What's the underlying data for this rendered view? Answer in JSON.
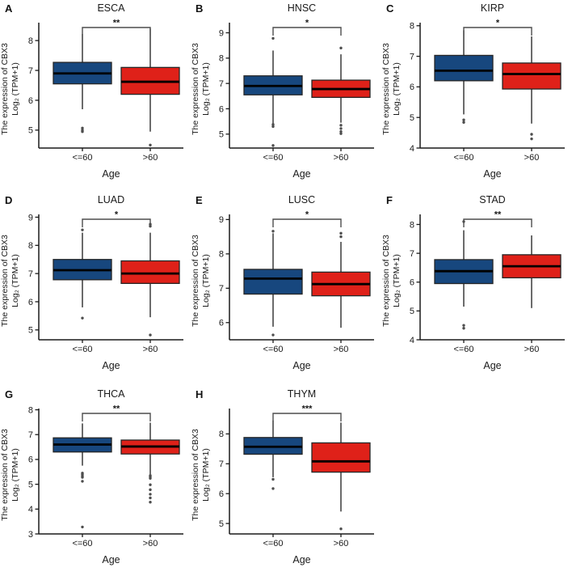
{
  "figure": {
    "background": "#ffffff",
    "ylabel_line1": "The expression of CBX3",
    "ylabel_line2": "Log₂ (TPM+1)",
    "xlabel": "Age",
    "categories": [
      "<=60",
      ">60"
    ],
    "legend": [
      {
        "label": "<=60",
        "color": "#17477E"
      },
      {
        "label": ">60",
        "color": "#DF2119"
      }
    ],
    "colors": {
      "blue_box": "#17477E",
      "red_box": "#DF2119",
      "box_border": "#262626",
      "median": "#000000",
      "whisker": "#2B2B2B",
      "bracket": "#4D4D4D",
      "outlier": "#4D4D4D",
      "axis": "#1A1A1A",
      "text": "#1A1A1A"
    }
  },
  "chart_data": [
    {
      "type": "boxplot",
      "panel": "A",
      "title": "ESCA",
      "significance": "**",
      "xlabel": "Age",
      "ylabel": "The expression of CBX3 Log₂ (TPM+1)",
      "categories": [
        "<=60",
        ">60"
      ],
      "yticks": [
        5,
        6,
        7,
        8
      ],
      "ylim": [
        4.4,
        8.6
      ],
      "series": [
        {
          "name": "<=60",
          "color": "#17477E",
          "whisker_low": 5.7,
          "q1": 6.55,
          "median": 6.9,
          "q3": 7.27,
          "whisker_high": 8.22,
          "outliers": [
            5.07,
            5.0,
            4.95
          ]
        },
        {
          "name": ">60",
          "color": "#DF2119",
          "whisker_low": 4.95,
          "q1": 6.2,
          "median": 6.62,
          "q3": 7.1,
          "whisker_high": 8.4,
          "outliers": [
            4.5
          ]
        }
      ]
    },
    {
      "type": "boxplot",
      "panel": "B",
      "title": "HNSC",
      "significance": "*",
      "xlabel": "Age",
      "ylabel": "The expression of CBX3 Log₂ (TPM+1)",
      "categories": [
        "<=60",
        ">60"
      ],
      "yticks": [
        5,
        6,
        7,
        8,
        9
      ],
      "ylim": [
        4.45,
        9.4
      ],
      "series": [
        {
          "name": "<=60",
          "color": "#17477E",
          "whisker_low": 5.4,
          "q1": 6.55,
          "median": 6.9,
          "q3": 7.3,
          "whisker_high": 8.3,
          "outliers": [
            8.78,
            5.38,
            5.3,
            4.55
          ]
        },
        {
          "name": ">60",
          "color": "#DF2119",
          "whisker_low": 5.45,
          "q1": 6.45,
          "median": 6.78,
          "q3": 7.13,
          "whisker_high": 8.15,
          "outliers": [
            8.4,
            5.35,
            5.22,
            5.1,
            5.02
          ]
        }
      ]
    },
    {
      "type": "boxplot",
      "panel": "C",
      "title": "KIRP",
      "significance": "*",
      "xlabel": "Age",
      "ylabel": "The expression of CBX3 Log₂ (TPM+1)",
      "categories": [
        "<=60",
        ">60"
      ],
      "yticks": [
        4,
        5,
        6,
        7,
        8
      ],
      "ylim": [
        4.0,
        8.1
      ],
      "series": [
        {
          "name": "<=60",
          "color": "#17477E",
          "whisker_low": 5.1,
          "q1": 6.2,
          "median": 6.53,
          "q3": 7.03,
          "whisker_high": 7.85,
          "outliers": [
            4.92,
            4.84
          ]
        },
        {
          "name": ">60",
          "color": "#DF2119",
          "whisker_low": 4.8,
          "q1": 5.93,
          "median": 6.42,
          "q3": 6.78,
          "whisker_high": 7.65,
          "outliers": [
            4.45,
            4.3
          ]
        }
      ]
    },
    {
      "type": "boxplot",
      "panel": "D",
      "title": "LUAD",
      "significance": "*",
      "xlabel": "Age",
      "ylabel": "The expression of CBX3 Log₂ (TPM+1)",
      "categories": [
        "<=60",
        ">60"
      ],
      "yticks": [
        5,
        6,
        7,
        8,
        9
      ],
      "ylim": [
        4.65,
        9.1
      ],
      "series": [
        {
          "name": "<=60",
          "color": "#17477E",
          "whisker_low": 5.8,
          "q1": 6.78,
          "median": 7.12,
          "q3": 7.5,
          "whisker_high": 8.45,
          "outliers": [
            8.55,
            5.42
          ]
        },
        {
          "name": ">60",
          "color": "#DF2119",
          "whisker_low": 5.45,
          "q1": 6.65,
          "median": 7.0,
          "q3": 7.45,
          "whisker_high": 8.45,
          "outliers": [
            8.75,
            8.68,
            4.82
          ]
        }
      ]
    },
    {
      "type": "boxplot",
      "panel": "E",
      "title": "LUSC",
      "significance": "*",
      "xlabel": "Age",
      "ylabel": "The expression of CBX3 Log₂ (TPM+1)",
      "categories": [
        "<=60",
        ">60"
      ],
      "yticks": [
        6,
        7,
        8,
        9
      ],
      "ylim": [
        5.5,
        9.15
      ],
      "series": [
        {
          "name": "<=60",
          "color": "#17477E",
          "whisker_low": 5.88,
          "q1": 6.83,
          "median": 7.28,
          "q3": 7.55,
          "whisker_high": 8.6,
          "outliers": [
            8.66,
            5.64
          ]
        },
        {
          "name": ">60",
          "color": "#DF2119",
          "whisker_low": 5.85,
          "q1": 6.78,
          "median": 7.12,
          "q3": 7.47,
          "whisker_high": 8.35,
          "outliers": [
            8.6,
            8.5
          ]
        }
      ]
    },
    {
      "type": "boxplot",
      "panel": "F",
      "title": "STAD",
      "significance": "**",
      "xlabel": "Age",
      "ylabel": "The expression of CBX3 Log₂ (TPM+1)",
      "categories": [
        "<=60",
        ">60"
      ],
      "yticks": [
        4,
        5,
        6,
        7,
        8
      ],
      "ylim": [
        4.0,
        8.35
      ],
      "series": [
        {
          "name": "<=60",
          "color": "#17477E",
          "whisker_low": 5.15,
          "q1": 5.95,
          "median": 6.38,
          "q3": 6.78,
          "whisker_high": 7.8,
          "outliers": [
            8.1,
            4.5,
            4.4
          ]
        },
        {
          "name": ">60",
          "color": "#DF2119",
          "whisker_low": 5.1,
          "q1": 6.15,
          "median": 6.55,
          "q3": 6.95,
          "whisker_high": 7.62,
          "outliers": []
        }
      ]
    },
    {
      "type": "boxplot",
      "panel": "G",
      "title": "THCA",
      "significance": "**",
      "xlabel": "Age",
      "ylabel": "The expression of CBX3 Log₂ (TPM+1)",
      "categories": [
        "<=60",
        ">60"
      ],
      "yticks": [
        3,
        4,
        5,
        6,
        7,
        8
      ],
      "ylim": [
        3.0,
        8.05
      ],
      "series": [
        {
          "name": "<=60",
          "color": "#17477E",
          "whisker_low": 5.75,
          "q1": 6.3,
          "median": 6.6,
          "q3": 6.87,
          "whisker_high": 7.45,
          "outliers": [
            5.45,
            5.4,
            5.33,
            5.28,
            5.12,
            3.28
          ]
        },
        {
          "name": ">60",
          "color": "#DF2119",
          "whisker_low": 5.4,
          "q1": 6.22,
          "median": 6.52,
          "q3": 6.78,
          "whisker_high": 7.48,
          "outliers": [
            5.35,
            5.3,
            5.24,
            4.98,
            4.78,
            4.6,
            4.45,
            4.28
          ]
        }
      ]
    },
    {
      "type": "boxplot",
      "panel": "H",
      "title": "THYM",
      "significance": "***",
      "xlabel": "Age",
      "ylabel": "The expression of CBX3 Log₂ (TPM+1)",
      "categories": [
        "<=60",
        ">60"
      ],
      "yticks": [
        5,
        6,
        7,
        8
      ],
      "ylim": [
        4.65,
        8.85
      ],
      "series": [
        {
          "name": "<=60",
          "color": "#17477E",
          "whisker_low": 6.55,
          "q1": 7.32,
          "median": 7.57,
          "q3": 7.88,
          "whisker_high": 8.45,
          "outliers": [
            6.48,
            6.17
          ]
        },
        {
          "name": ">60",
          "color": "#DF2119",
          "whisker_low": 5.4,
          "q1": 6.72,
          "median": 7.08,
          "q3": 7.7,
          "whisker_high": 8.38,
          "outliers": [
            4.82
          ]
        }
      ]
    }
  ]
}
